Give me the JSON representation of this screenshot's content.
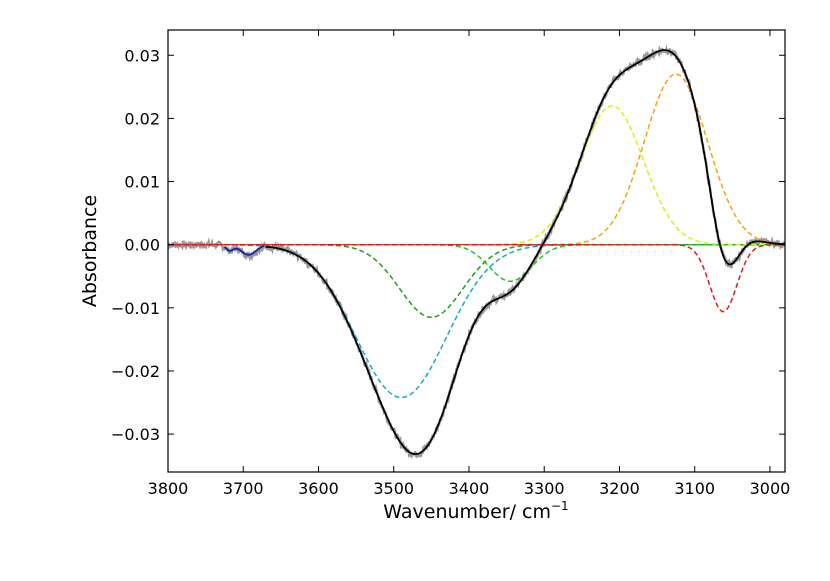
{
  "chart_data": {
    "type": "line",
    "title": "",
    "xlabel": "Wavenumber/ cm",
    "xlabel_superscript": "−1",
    "ylabel": "Absorbance",
    "xlim": [
      3800,
      2980
    ],
    "ylim": [
      -0.036,
      0.034
    ],
    "x_ticks": [
      3800,
      3700,
      3600,
      3500,
      3400,
      3300,
      3200,
      3100,
      3000
    ],
    "x_tick_labels": [
      "3800",
      "3700",
      "3600",
      "3500",
      "3400",
      "3300",
      "3200",
      "3100",
      "3000"
    ],
    "y_ticks": [
      0.03,
      0.02,
      0.01,
      0.0,
      -0.01,
      -0.02,
      -0.03
    ],
    "y_tick_labels": [
      "0.03",
      "0.02",
      "0.01",
      "0.00",
      "−0.01",
      "−0.02",
      "−0.03"
    ],
    "grid": false,
    "legend": "none",
    "components": [
      {
        "name": "band-3695",
        "color": "#1a1aa8",
        "dash": false,
        "x_range": [
          3725,
          3670
        ],
        "peaks": [
          {
            "center": 3718,
            "amp": -0.0009,
            "sigma": 5
          },
          {
            "center": 3693,
            "amp": -0.0016,
            "sigma": 10
          }
        ]
      },
      {
        "name": "band-3490",
        "color": "#1aa7c9",
        "dash": true,
        "peaks": [
          {
            "center": 3490,
            "amp": -0.0242,
            "sigma": 60
          }
        ]
      },
      {
        "name": "band-3450",
        "color": "#1f9e1f",
        "dash": true,
        "peaks": [
          {
            "center": 3450,
            "amp": -0.0115,
            "sigma": 42
          }
        ]
      },
      {
        "name": "band-3345",
        "color": "#22c422",
        "dash": true,
        "peaks": [
          {
            "center": 3345,
            "amp": -0.0058,
            "sigma": 28
          }
        ]
      },
      {
        "name": "band-3210",
        "color": "#dcee18",
        "dash": true,
        "peaks": [
          {
            "center": 3210,
            "amp": 0.022,
            "sigma": 42
          }
        ]
      },
      {
        "name": "band-3125",
        "color": "#f2a30f",
        "dash": true,
        "peaks": [
          {
            "center": 3125,
            "amp": 0.027,
            "sigma": 42
          }
        ]
      },
      {
        "name": "band-3062",
        "color": "#dd1c1c",
        "dash": true,
        "peaks": [
          {
            "center": 3062,
            "amp": -0.0106,
            "sigma": 18
          }
        ]
      }
    ],
    "series": [
      {
        "name": "measured",
        "color": "#999999",
        "noise": 0.0005
      },
      {
        "name": "fit",
        "color": "#000000"
      }
    ],
    "baseline": {
      "color": "#dd1c1c",
      "value": 0.0
    }
  }
}
